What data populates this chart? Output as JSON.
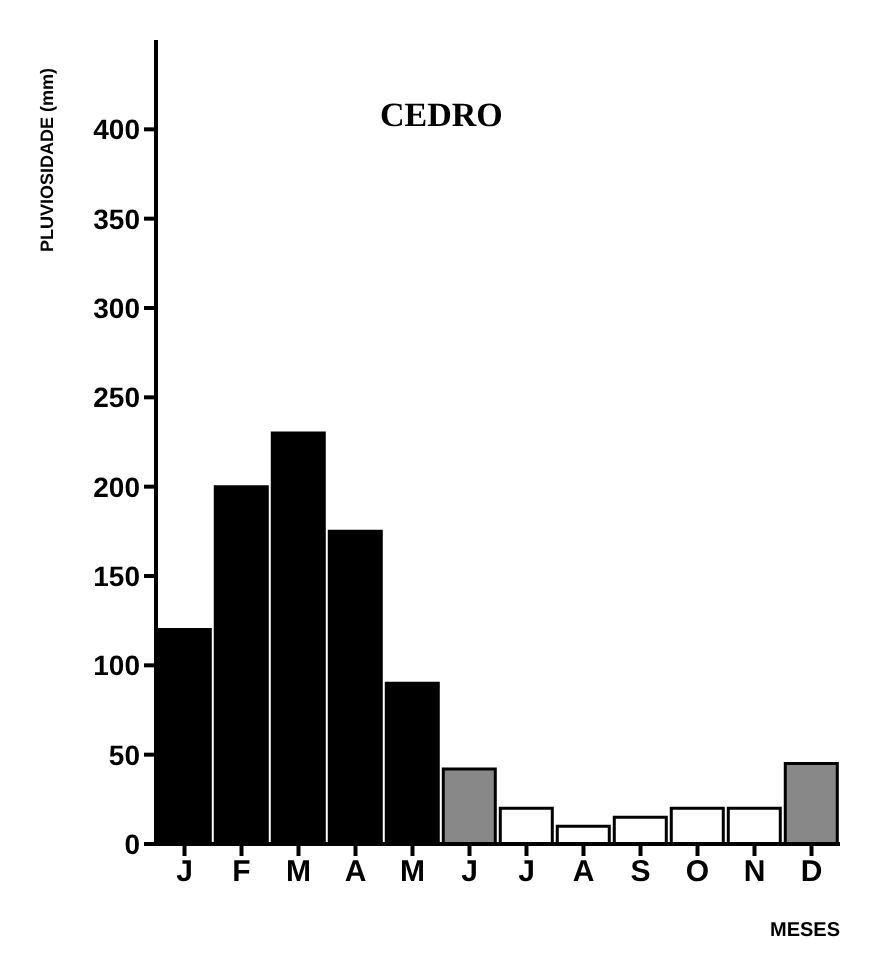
{
  "chart_data": {
    "type": "bar",
    "title": "CEDRO",
    "xlabel": "MESES",
    "ylabel": "PLUVIOSIDADE (mm)",
    "categories": [
      "J",
      "F",
      "M",
      "A",
      "M",
      "J",
      "J",
      "A",
      "S",
      "O",
      "N",
      "D"
    ],
    "values": [
      120,
      200,
      230,
      175,
      90,
      42,
      20,
      10,
      15,
      20,
      20,
      45
    ],
    "colors": [
      "#000000",
      "#000000",
      "#000000",
      "#000000",
      "#000000",
      "#888888",
      "#ffffff",
      "#ffffff",
      "#ffffff",
      "#ffffff",
      "#ffffff",
      "#888888"
    ],
    "ylim": [
      0,
      450
    ],
    "yticks": [
      0,
      50,
      100,
      150,
      200,
      250,
      300,
      350,
      400
    ],
    "grid": false
  }
}
